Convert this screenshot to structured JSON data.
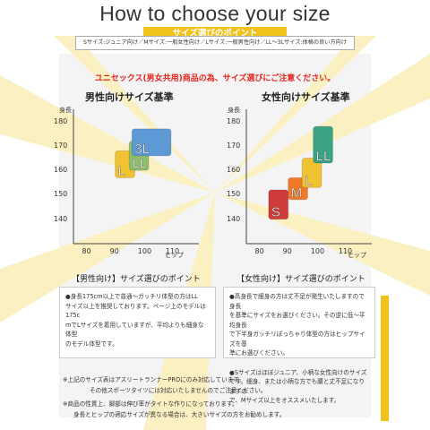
{
  "header": {
    "title": "How to choose your size",
    "subtitle": "サイズ選びのポイント",
    "size_note": "Sサイズ:ジュニア向け／Mサイズ:一般女性向け／Lサイズ:一般男性向け／LL～3Lサイズ:体格の良い方向け"
  },
  "unisex_note": "ユニセックス(男女共用)商品の為、サイズ選びにご注意ください。",
  "colors": {
    "accent_yellow": "#f2c21c",
    "alert_red": "#e2261f"
  },
  "chart_data": [
    {
      "type": "table",
      "title": "男性向けサイズ基準",
      "ylabel": "身長",
      "xlabel": "ヒップ",
      "y_ticks": [
        "180",
        "170",
        "160",
        "150",
        "140"
      ],
      "x_ticks": [
        "80",
        "90",
        "100",
        "110"
      ],
      "sizes": [
        {
          "label": "L",
          "hip": [
            90,
            97
          ],
          "height": [
            157,
            168
          ],
          "color": "#f1c232"
        },
        {
          "label": "LL",
          "hip": [
            95,
            102
          ],
          "height": [
            160,
            172
          ],
          "color": "#8fbf6a"
        },
        {
          "label": "3L",
          "hip": [
            96,
            110
          ],
          "height": [
            166,
            177
          ],
          "color": "#5d9ad5"
        }
      ]
    },
    {
      "type": "table",
      "title": "女性向けサイズ基準",
      "ylabel": "身長",
      "xlabel": "ヒップ",
      "y_ticks": [
        "180",
        "170",
        "160",
        "150",
        "140"
      ],
      "x_ticks": [
        "80",
        "90",
        "100",
        "110"
      ],
      "sizes": [
        {
          "label": "S",
          "hip": [
            83,
            90
          ],
          "height": [
            140,
            152
          ],
          "color": "#cf3a3a"
        },
        {
          "label": "M",
          "hip": [
            90,
            97
          ],
          "height": [
            148,
            157
          ],
          "color": "#ef7b2a"
        },
        {
          "label": "L",
          "hip": [
            95,
            102
          ],
          "height": [
            153,
            165
          ],
          "color": "#f1c232"
        },
        {
          "label": "LL",
          "hip": [
            99,
            106
          ],
          "height": [
            163,
            178
          ],
          "color": "#3aa383"
        }
      ]
    }
  ],
  "men_points": {
    "title": "【男性向け】サイズ選びのポイント",
    "lines": [
      "●身長175cm以上で普通～ガッチリ体型の方はLL",
      "サイズ以上を推奨しております。ページ上のモデルは175c",
      "mでLサイズを着用していますが、平均よりも細身な体型",
      "のモデル体型です。"
    ]
  },
  "women_points": {
    "title": "【女性向け】サイズ選びのポイント",
    "lines_a": [
      "●高身長で細身の方は丈不足が発生いたしますので身長",
      "を基準にサイズをお選びください。その逆に低～平均身長",
      "で下半身ガッチリぽっちゃり体型の方はヒップサイズを基",
      "準にお選びください。"
    ],
    "lines_b": [
      "●Sサイズはほぼジュニア、小柄な女性向けのサイズ",
      "です。細身、または小柄な方でも腰と丈不足になりますの",
      "で、Mサイズ以上をオススメいたします。"
    ]
  },
  "footer": {
    "note1": "※上記のサイズ表はアスリートランナーPROにのみ対応しています。",
    "note2": "その他スポーツタイツには対応いたしませんのでご注意ください。",
    "note3": "※商品の性質上、脚部は伸び率がタイトな作りになっております。",
    "note4": "身長とヒップの適応サイズが異なる場合は、大きいサイズの方をお勧めします。"
  }
}
